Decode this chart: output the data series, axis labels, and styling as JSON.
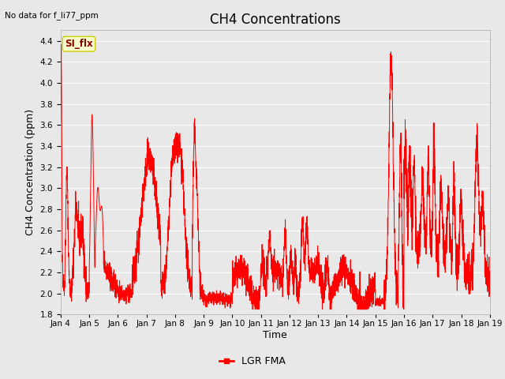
{
  "title": "CH4 Concentrations",
  "xlabel": "Time",
  "ylabel": "CH4 Concentration (ppm)",
  "top_left_text": "No data for f_li77_ppm",
  "annotation_label": "SI_flx",
  "legend_label": "LGR FMA",
  "line_color": "red",
  "ylim": [
    1.8,
    4.5
  ],
  "yticks": [
    1.8,
    2.0,
    2.2,
    2.4,
    2.6,
    2.8,
    3.0,
    3.2,
    3.4,
    3.6,
    3.8,
    4.0,
    4.2,
    4.4
  ],
  "background_color": "#e8e8e8",
  "plot_bg_color": "#e8e8e8",
  "grid_color": "white",
  "annotation_bg": "#ffffcc",
  "annotation_border": "#cccc00",
  "title_fontsize": 12,
  "axis_label_fontsize": 9,
  "tick_fontsize": 7.5,
  "x_start_day": 4,
  "x_end_day": 19,
  "x_tick_days": [
    4,
    5,
    6,
    7,
    8,
    9,
    10,
    11,
    12,
    13,
    14,
    15,
    16,
    17,
    18,
    19
  ],
  "x_tick_labels": [
    "Jan 4",
    "Jan 5",
    "Jan 6",
    "Jan 7",
    "Jan 8",
    "Jan 9",
    "Jan 10",
    "Jan 11",
    "Jan 12",
    "Jan 13",
    "Jan 14",
    "Jan 15",
    "Jan 16",
    "Jan 17",
    "Jan 18",
    "Jan 19"
  ]
}
